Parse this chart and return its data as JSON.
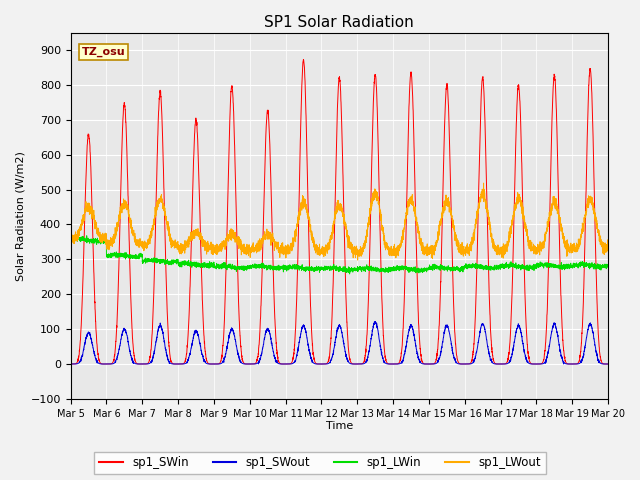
{
  "title": "SP1 Solar Radiation",
  "xlabel": "Time",
  "ylabel": "Solar Radiation (W/m2)",
  "ylim": [
    -100,
    950
  ],
  "yticks": [
    -100,
    0,
    100,
    200,
    300,
    400,
    500,
    600,
    700,
    800,
    900
  ],
  "colors": {
    "SWin": "#ff0000",
    "SWout": "#0000dd",
    "LWin": "#00dd00",
    "LWout": "#ffaa00"
  },
  "legend_labels": [
    "sp1_SWin",
    "sp1_SWout",
    "sp1_LWin",
    "sp1_LWout"
  ],
  "tz_label": "TZ_osu",
  "bg_color": "#e8e8e8",
  "fig_bg": "#f2f2f2",
  "n_days": 15,
  "start_day": 5,
  "swin_peaks": [
    660,
    745,
    780,
    700,
    795,
    725,
    870,
    820,
    830,
    835,
    800,
    820,
    800,
    825,
    845
  ],
  "swout_peaks": [
    90,
    100,
    110,
    95,
    100,
    100,
    110,
    110,
    120,
    110,
    110,
    115,
    110,
    115,
    115
  ],
  "lwin_starts": [
    355,
    305,
    295,
    285,
    280,
    280,
    275,
    275,
    275,
    275,
    280,
    280,
    285,
    285,
    285
  ],
  "lwout_peaks": [
    450,
    460,
    470,
    375,
    370,
    370,
    465,
    455,
    490,
    470,
    470,
    490,
    475,
    465,
    470
  ]
}
